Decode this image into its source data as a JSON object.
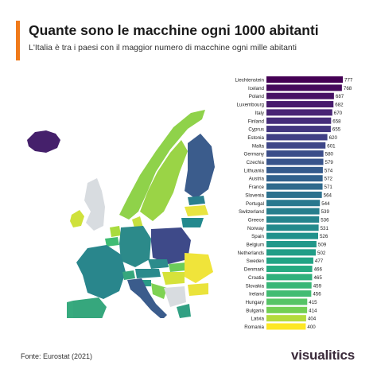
{
  "header": {
    "title": "Quante sono le macchine ogni 1000 abitanti",
    "subtitle": "L'Italia è tra i paesi con il maggior numero di macchine ogni mille abitanti",
    "accent_color": "#f07a1a"
  },
  "footer": {
    "source": "Fonte: Eurostat (2021)",
    "brand": "visualitics"
  },
  "map": {
    "icon": "europe-map"
  },
  "chart_data": {
    "type": "bar",
    "orientation": "horizontal",
    "title": "",
    "xlabel": "",
    "ylabel": "",
    "xlim": [
      0,
      777
    ],
    "grid": false,
    "legend": "none",
    "colormap": "viridis",
    "categories": [
      "Liechtenstein",
      "Iceland",
      "Poland",
      "Luxembourg",
      "Italy",
      "Finland",
      "Cyprus",
      "Estonia",
      "Malta",
      "Germany",
      "Czechia",
      "Lithuania",
      "Austria",
      "France",
      "Slovenia",
      "Portugal",
      "Switzerland",
      "Greece",
      "Norway",
      "Spain",
      "Belgium",
      "Netherlands",
      "Sweden",
      "Denmark",
      "Croatia",
      "Slovakia",
      "Ireland",
      "Hungary",
      "Bulgaria",
      "Latvia",
      "Romania"
    ],
    "values": [
      777,
      768,
      687,
      682,
      670,
      658,
      655,
      620,
      601,
      580,
      579,
      574,
      572,
      571,
      564,
      544,
      539,
      536,
      531,
      526,
      509,
      502,
      477,
      466,
      465,
      459,
      456,
      415,
      414,
      404,
      400
    ]
  }
}
